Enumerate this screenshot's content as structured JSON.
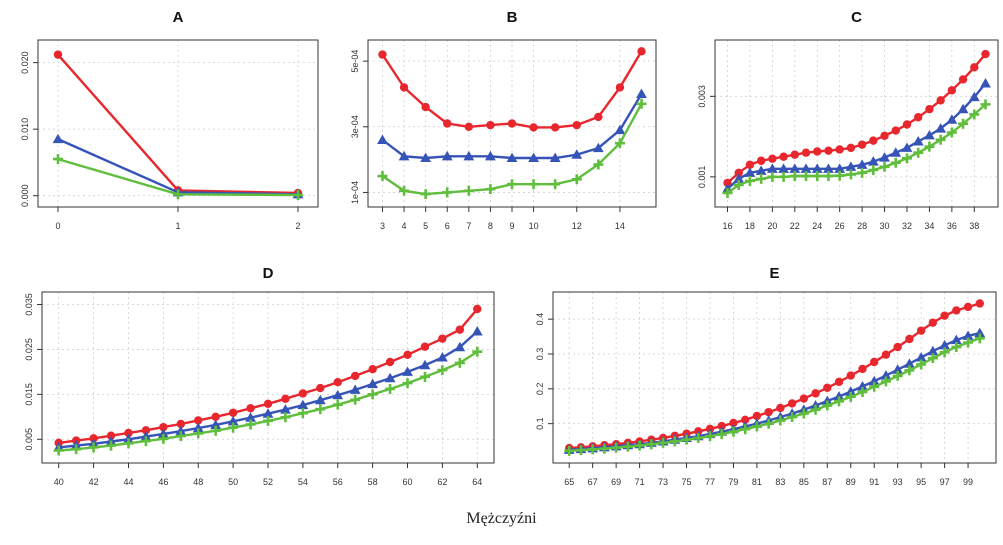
{
  "caption": "Mężczyźni",
  "colors": {
    "series1": "#e8262d",
    "series2": "#3654b8",
    "series3": "#5fbe3c",
    "grid": "#d0d0d0",
    "frame": "#333333"
  },
  "chart_data": [
    {
      "type": "line",
      "title": "A",
      "x": [
        0,
        1,
        2
      ],
      "xticks": [
        0,
        1,
        2
      ],
      "xticklabels": [
        "0",
        "1",
        "2"
      ],
      "xlim": [
        -0.1,
        2.1
      ],
      "ylim": [
        -0.0005,
        0.0222
      ],
      "yticks": [
        0.0,
        0.01,
        0.02
      ],
      "yticklabels": [
        "0.000",
        "0.010",
        "0.020"
      ],
      "grid": true,
      "series": [
        {
          "marker": "circle",
          "color": "#e8262d",
          "values": [
            0.0212,
            0.0008,
            0.0004
          ]
        },
        {
          "marker": "triangle",
          "color": "#3654b8",
          "values": [
            0.0085,
            0.0005,
            0.0002
          ]
        },
        {
          "marker": "plus",
          "color": "#5fbe3c",
          "values": [
            0.0055,
            0.0002,
            0.0001
          ]
        }
      ]
    },
    {
      "type": "line",
      "title": "B",
      "x": [
        3,
        4,
        5,
        6,
        7,
        8,
        9,
        10,
        11,
        12,
        13,
        14,
        15
      ],
      "xticks": [
        3,
        4,
        5,
        6,
        7,
        8,
        9,
        10,
        12,
        14
      ],
      "xticklabels": [
        "3",
        "4",
        "5",
        "6",
        "7",
        "8",
        "9",
        "10",
        "12",
        "14"
      ],
      "xlim": [
        2.7,
        15.3
      ],
      "ylim": [
        8e-05,
        0.00054
      ],
      "yticks": [
        0.0001,
        0.0003,
        0.0005
      ],
      "yticklabels": [
        "1e-04",
        "3e-04",
        "5e-04"
      ],
      "grid": true,
      "series": [
        {
          "marker": "circle",
          "color": "#e8262d",
          "values": [
            0.00052,
            0.00042,
            0.00036,
            0.00031,
            0.0003,
            0.000305,
            0.00031,
            0.000298,
            0.000298,
            0.000305,
            0.00033,
            0.00042,
            0.00053
          ]
        },
        {
          "marker": "triangle",
          "color": "#3654b8",
          "values": [
            0.00026,
            0.00021,
            0.000205,
            0.00021,
            0.00021,
            0.00021,
            0.000205,
            0.000205,
            0.000205,
            0.000215,
            0.000235,
            0.00029,
            0.0004
          ]
        },
        {
          "marker": "plus",
          "color": "#5fbe3c",
          "values": [
            0.00015,
            0.000105,
            9.5e-05,
            0.0001,
            0.000105,
            0.00011,
            0.000125,
            0.000125,
            0.000125,
            0.00014,
            0.000185,
            0.00025,
            0.00037
          ]
        }
      ]
    },
    {
      "type": "line",
      "title": "C",
      "x": [
        16,
        17,
        18,
        19,
        20,
        21,
        22,
        23,
        24,
        25,
        26,
        27,
        28,
        29,
        30,
        31,
        32,
        33,
        34,
        35,
        36,
        37,
        38,
        39
      ],
      "xticks": [
        16,
        18,
        20,
        22,
        24,
        26,
        28,
        30,
        32,
        34,
        36,
        38
      ],
      "xticklabels": [
        "16",
        "18",
        "20",
        "22",
        "24",
        "26",
        "28",
        "30",
        "32",
        "34",
        "36",
        "38"
      ],
      "xlim": [
        15.6,
        39.4
      ],
      "ylim": [
        0.00045,
        0.0042
      ],
      "yticks": [
        0.001,
        0.003
      ],
      "yticklabels": [
        "0.001",
        "0.003"
      ],
      "grid": true,
      "series": [
        {
          "marker": "circle",
          "color": "#e8262d",
          "values": [
            0.00085,
            0.0011,
            0.0013,
            0.0014,
            0.00145,
            0.0015,
            0.00155,
            0.0016,
            0.00163,
            0.00165,
            0.00168,
            0.00172,
            0.0018,
            0.0019,
            0.00202,
            0.00215,
            0.0023,
            0.00248,
            0.00268,
            0.0029,
            0.00315,
            0.00342,
            0.00372,
            0.00405
          ]
        },
        {
          "marker": "triangle",
          "color": "#3654b8",
          "values": [
            0.0007,
            0.00095,
            0.0011,
            0.00115,
            0.0012,
            0.0012,
            0.0012,
            0.0012,
            0.0012,
            0.0012,
            0.0012,
            0.00125,
            0.0013,
            0.00138,
            0.00148,
            0.0016,
            0.00172,
            0.00188,
            0.00203,
            0.0022,
            0.00242,
            0.00268,
            0.00298,
            0.00332
          ]
        },
        {
          "marker": "plus",
          "color": "#5fbe3c",
          "values": [
            0.0006,
            0.0008,
            0.0009,
            0.00095,
            0.001,
            0.001,
            0.00102,
            0.00102,
            0.00102,
            0.00102,
            0.00103,
            0.00106,
            0.0011,
            0.00117,
            0.00125,
            0.00135,
            0.00146,
            0.0016,
            0.00175,
            0.00192,
            0.0021,
            0.00232,
            0.00255,
            0.0028
          ]
        }
      ]
    },
    {
      "type": "line",
      "title": "D",
      "x": [
        40,
        41,
        42,
        43,
        44,
        45,
        46,
        47,
        48,
        49,
        50,
        51,
        52,
        53,
        54,
        55,
        56,
        57,
        58,
        59,
        60,
        61,
        62,
        63,
        64
      ],
      "xticks": [
        40,
        42,
        44,
        46,
        48,
        50,
        52,
        54,
        56,
        58,
        60,
        62,
        64
      ],
      "xticklabels": [
        "40",
        "42",
        "44",
        "46",
        "48",
        "50",
        "52",
        "54",
        "56",
        "58",
        "60",
        "62",
        "64"
      ],
      "xlim": [
        39.5,
        64.5
      ],
      "ylim": [
        0.0015,
        0.036
      ],
      "yticks": [
        0.005,
        0.015,
        0.025,
        0.035
      ],
      "yticklabels": [
        "0.005",
        "0.015",
        "0.025",
        "0.035"
      ],
      "grid": true,
      "series": [
        {
          "marker": "circle",
          "color": "#e8262d",
          "values": [
            0.0042,
            0.0047,
            0.0052,
            0.0058,
            0.0064,
            0.007,
            0.0077,
            0.0084,
            0.0092,
            0.01,
            0.0109,
            0.0119,
            0.0129,
            0.014,
            0.0152,
            0.0164,
            0.0177,
            0.0191,
            0.0206,
            0.0222,
            0.0238,
            0.0256,
            0.0274,
            0.0294,
            0.034
          ]
        },
        {
          "marker": "triangle",
          "color": "#3654b8",
          "values": [
            0.0032,
            0.0036,
            0.004,
            0.0045,
            0.005,
            0.0056,
            0.0062,
            0.0068,
            0.0075,
            0.0082,
            0.009,
            0.0098,
            0.0107,
            0.0116,
            0.0126,
            0.0137,
            0.0148,
            0.016,
            0.0173,
            0.0186,
            0.02,
            0.0215,
            0.0232,
            0.0255,
            0.029
          ]
        },
        {
          "marker": "plus",
          "color": "#5fbe3c",
          "values": [
            0.0025,
            0.0028,
            0.0032,
            0.0036,
            0.0041,
            0.0046,
            0.0051,
            0.0057,
            0.0063,
            0.0069,
            0.0076,
            0.0083,
            0.0091,
            0.0099,
            0.0108,
            0.0117,
            0.0127,
            0.0138,
            0.015,
            0.0162,
            0.0175,
            0.0189,
            0.0204,
            0.022,
            0.0245
          ]
        }
      ]
    },
    {
      "type": "line",
      "title": "E",
      "x": [
        65,
        66,
        67,
        68,
        69,
        70,
        71,
        72,
        73,
        74,
        75,
        76,
        77,
        78,
        79,
        80,
        81,
        82,
        83,
        84,
        85,
        86,
        87,
        88,
        89,
        90,
        91,
        92,
        93,
        94,
        95,
        96,
        97,
        98,
        99,
        100
      ],
      "xticks": [
        65,
        67,
        69,
        71,
        73,
        75,
        77,
        79,
        81,
        83,
        85,
        87,
        89,
        91,
        93,
        95,
        97,
        99
      ],
      "xticklabels": [
        "65",
        "67",
        "69",
        "71",
        "73",
        "75",
        "77",
        "79",
        "81",
        "83",
        "85",
        "87",
        "89",
        "91",
        "93",
        "95",
        "97",
        "99"
      ],
      "xlim": [
        64.3,
        100.7
      ],
      "ylim": [
        0.01,
        0.455
      ],
      "yticks": [
        0.1,
        0.2,
        0.3,
        0.4
      ],
      "yticklabels": [
        "0.1",
        "0.2",
        "0.3",
        "0.4"
      ],
      "grid": true,
      "series": [
        {
          "marker": "circle",
          "color": "#e8262d",
          "values": [
            0.03,
            0.032,
            0.035,
            0.038,
            0.041,
            0.045,
            0.049,
            0.054,
            0.059,
            0.065,
            0.071,
            0.078,
            0.085,
            0.093,
            0.102,
            0.111,
            0.122,
            0.133,
            0.145,
            0.158,
            0.172,
            0.187,
            0.203,
            0.22,
            0.238,
            0.257,
            0.277,
            0.298,
            0.32,
            0.343,
            0.367,
            0.39,
            0.41,
            0.425,
            0.435,
            0.445
          ]
        },
        {
          "marker": "triangle",
          "color": "#3654b8",
          "values": [
            0.025,
            0.027,
            0.029,
            0.032,
            0.035,
            0.038,
            0.041,
            0.045,
            0.049,
            0.054,
            0.059,
            0.064,
            0.07,
            0.077,
            0.084,
            0.092,
            0.1,
            0.109,
            0.119,
            0.129,
            0.14,
            0.152,
            0.165,
            0.178,
            0.192,
            0.207,
            0.222,
            0.238,
            0.255,
            0.272,
            0.29,
            0.308,
            0.325,
            0.34,
            0.352,
            0.36
          ]
        },
        {
          "marker": "plus",
          "color": "#5fbe3c",
          "values": [
            0.022,
            0.024,
            0.026,
            0.028,
            0.031,
            0.034,
            0.037,
            0.041,
            0.045,
            0.049,
            0.054,
            0.059,
            0.064,
            0.07,
            0.077,
            0.084,
            0.092,
            0.1,
            0.109,
            0.119,
            0.129,
            0.14,
            0.152,
            0.164,
            0.177,
            0.191,
            0.206,
            0.221,
            0.237,
            0.253,
            0.27,
            0.288,
            0.305,
            0.32,
            0.333,
            0.345
          ]
        }
      ]
    }
  ]
}
